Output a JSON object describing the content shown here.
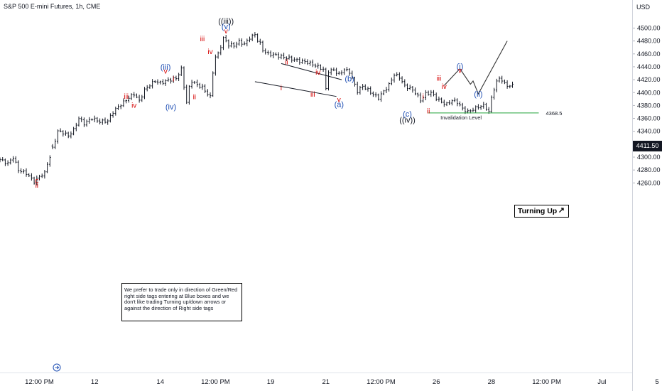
{
  "header": {
    "title": "S&P 500 E-mini Futures, 1h, CME",
    "currency": "USD"
  },
  "price_tag": "4411.50",
  "colors": {
    "candle": "#131722",
    "red_label": "#d50000",
    "blue_label": "#1f4fb4",
    "black_label": "#131722",
    "invalidation_line": "#22a53a",
    "projection": "#333333"
  },
  "note_text": "We prefer to trade only in direction of Green/Red right side tags entering at Blue boxes and we don't like trading Turning up/down arrows or against the direction of Right side tags",
  "turning_label": "Turning Up",
  "turning_arrow": "↗",
  "invalidation": {
    "label": "Invalidation Level",
    "value_label": "4368.5",
    "value": 4368.5
  },
  "chart_data": {
    "type": "candlestick",
    "instrument": "S&P 500 E-mini Futures",
    "interval": "1h",
    "exchange": "CME",
    "y_axis": {
      "ticks": [
        4500,
        4480,
        4460,
        4440,
        4420,
        4400,
        4380,
        4360,
        4340,
        4320,
        4300,
        4280,
        4260
      ],
      "tick_labels": [
        "4500.00",
        "4480.00",
        "4460.00",
        "4440.00",
        "4420.00",
        "4400.00",
        "4380.00",
        "4360.00",
        "4340.00",
        "4320.00",
        "4300.00",
        "4280.00",
        "4260.00"
      ],
      "range": [
        4242,
        4520
      ]
    },
    "x_axis": {
      "tick_labels": [
        "12:00 PM",
        "12",
        "14",
        "12:00 PM",
        "19",
        "21",
        "12:00 PM",
        "26",
        "28",
        "12:00 PM",
        "Jul",
        "5"
      ],
      "tick_index": [
        15,
        36,
        61,
        82,
        103,
        124,
        145,
        166,
        187,
        208,
        229,
        250
      ]
    },
    "last_price": 4411.5,
    "price_anchors": [
      [
        0,
        4296
      ],
      [
        3,
        4290
      ],
      [
        5,
        4300
      ],
      [
        7,
        4280
      ],
      [
        10,
        4275
      ],
      [
        13,
        4262
      ],
      [
        15,
        4270
      ],
      [
        17,
        4275
      ],
      [
        18,
        4290
      ],
      [
        19,
        4300
      ],
      [
        22,
        4340
      ],
      [
        24,
        4338
      ],
      [
        26,
        4333
      ],
      [
        28,
        4342
      ],
      [
        30,
        4360
      ],
      [
        32,
        4352
      ],
      [
        35,
        4360
      ],
      [
        38,
        4355
      ],
      [
        41,
        4356
      ],
      [
        43,
        4370
      ],
      [
        45,
        4378
      ],
      [
        47,
        4385
      ],
      [
        49,
        4392
      ],
      [
        51,
        4398
      ],
      [
        53,
        4387
      ],
      [
        55,
        4404
      ],
      [
        57,
        4412
      ],
      [
        59,
        4418
      ],
      [
        61,
        4415
      ],
      [
        64,
        4419
      ],
      [
        67,
        4422
      ],
      [
        69,
        4436
      ],
      [
        70,
        4410
      ],
      [
        71,
        4385
      ],
      [
        72,
        4408
      ],
      [
        73,
        4418
      ],
      [
        75,
        4412
      ],
      [
        77,
        4408
      ],
      [
        79,
        4398
      ],
      [
        80,
        4393
      ],
      [
        81,
        4432
      ],
      [
        82,
        4455
      ],
      [
        83,
        4460
      ],
      [
        85,
        4484
      ],
      [
        86,
        4480
      ],
      [
        87,
        4474
      ],
      [
        89,
        4473
      ],
      [
        91,
        4479
      ],
      [
        93,
        4475
      ],
      [
        95,
        4485
      ],
      [
        97,
        4490
      ],
      [
        98,
        4481
      ],
      [
        99,
        4476
      ],
      [
        100,
        4466
      ],
      [
        102,
        4460
      ],
      [
        105,
        4458
      ],
      [
        108,
        4455
      ],
      [
        111,
        4452
      ],
      [
        114,
        4449
      ],
      [
        117,
        4447
      ],
      [
        120,
        4442
      ],
      [
        123,
        4436
      ],
      [
        124,
        4405
      ],
      [
        125,
        4433
      ],
      [
        127,
        4435
      ],
      [
        129,
        4428
      ],
      [
        131,
        4436
      ],
      [
        133,
        4432
      ],
      [
        135,
        4412
      ],
      [
        136,
        4402
      ],
      [
        138,
        4410
      ],
      [
        140,
        4404
      ],
      [
        142,
        4397
      ],
      [
        144,
        4392
      ],
      [
        146,
        4402
      ],
      [
        148,
        4412
      ],
      [
        150,
        4428
      ],
      [
        152,
        4424
      ],
      [
        154,
        4410
      ],
      [
        156,
        4407
      ],
      [
        158,
        4400
      ],
      [
        160,
        4388
      ],
      [
        162,
        4398
      ],
      [
        164,
        4400
      ],
      [
        166,
        4392
      ],
      [
        168,
        4385
      ],
      [
        170,
        4382
      ],
      [
        172,
        4388
      ],
      [
        174,
        4385
      ],
      [
        176,
        4375
      ],
      [
        178,
        4370
      ],
      [
        180,
        4374
      ],
      [
        182,
        4378
      ],
      [
        184,
        4380
      ],
      [
        185,
        4376
      ],
      [
        186,
        4370
      ],
      [
        187,
        4392
      ],
      [
        188,
        4406
      ],
      [
        189,
        4416
      ],
      [
        190,
        4423
      ],
      [
        191,
        4419
      ],
      [
        192,
        4413
      ],
      [
        194,
        4410
      ],
      [
        195,
        4411.5
      ]
    ],
    "gaps_after_index": [
      19
    ],
    "wave_labels": [
      {
        "text": "c",
        "i": 14,
        "price": 4264,
        "color": "red",
        "pos": "below"
      },
      {
        "text": "ii",
        "i": 14,
        "price": 4257,
        "color": "red",
        "pos": "below"
      },
      {
        "text": "iii",
        "i": 48,
        "price": 4395,
        "color": "red",
        "pos": "above"
      },
      {
        "text": "iv",
        "i": 51,
        "price": 4381,
        "color": "red",
        "pos": "below"
      },
      {
        "text": "(iii)",
        "i": 63,
        "price": 4440,
        "color": "blue",
        "pos": "above"
      },
      {
        "text": "v",
        "i": 63,
        "price": 4434,
        "color": "red",
        "pos": "above"
      },
      {
        "text": "i",
        "i": 66,
        "price": 4422,
        "color": "red",
        "pos": "above"
      },
      {
        "text": "(iv)",
        "i": 65,
        "price": 4378,
        "color": "blue",
        "pos": "below"
      },
      {
        "text": "ii",
        "i": 74,
        "price": 4394,
        "color": "red",
        "pos": "below"
      },
      {
        "text": "iii",
        "i": 77,
        "price": 4484,
        "color": "red",
        "pos": "above"
      },
      {
        "text": "iv",
        "i": 80,
        "price": 4464,
        "color": "red",
        "pos": "below"
      },
      {
        "text": "((iii))",
        "i": 86,
        "price": 4511,
        "color": "black",
        "pos": "above"
      },
      {
        "text": "(v)",
        "i": 86,
        "price": 4503,
        "color": "blue",
        "pos": "above"
      },
      {
        "text": "v",
        "i": 86,
        "price": 4496,
        "color": "red",
        "pos": "above"
      },
      {
        "text": "ii",
        "i": 109,
        "price": 4448,
        "color": "red",
        "pos": "above"
      },
      {
        "text": "i",
        "i": 107,
        "price": 4408,
        "color": "red",
        "pos": "below"
      },
      {
        "text": "iii",
        "i": 119,
        "price": 4398,
        "color": "red",
        "pos": "below"
      },
      {
        "text": "iv",
        "i": 121,
        "price": 4432,
        "color": "red",
        "pos": "above"
      },
      {
        "text": "v",
        "i": 129,
        "price": 4390,
        "color": "red",
        "pos": "below"
      },
      {
        "text": "(a)",
        "i": 129,
        "price": 4382,
        "color": "blue",
        "pos": "below"
      },
      {
        "text": "(b)",
        "i": 133,
        "price": 4422,
        "color": "blue",
        "pos": "above"
      },
      {
        "text": "(c)",
        "i": 155,
        "price": 4367,
        "color": "blue",
        "pos": "below"
      },
      {
        "text": "((iv))",
        "i": 155,
        "price": 4358,
        "color": "black",
        "pos": "below"
      },
      {
        "text": "i",
        "i": 161,
        "price": 4395,
        "color": "red",
        "pos": "above"
      },
      {
        "text": "ii",
        "i": 163,
        "price": 4372,
        "color": "red",
        "pos": "below"
      },
      {
        "text": "iii",
        "i": 167,
        "price": 4423,
        "color": "red",
        "pos": "above"
      },
      {
        "text": "iv",
        "i": 169,
        "price": 4410,
        "color": "red",
        "pos": "below"
      },
      {
        "text": "(i)",
        "i": 175,
        "price": 4441,
        "color": "blue",
        "pos": "above"
      },
      {
        "text": "v",
        "i": 175,
        "price": 4435,
        "color": "red",
        "pos": "above"
      },
      {
        "text": "(ii)",
        "i": 182,
        "price": 4398,
        "color": "blue",
        "pos": "below"
      }
    ],
    "channel_lines": [
      {
        "from": [
          107,
          4445
        ],
        "to": [
          130,
          4420
        ]
      },
      {
        "from": [
          97,
          4417
        ],
        "to": [
          128,
          4394
        ]
      }
    ],
    "projection_path": [
      [
        169,
        4411
      ],
      [
        175,
        4437
      ],
      [
        179,
        4413
      ],
      [
        180,
        4418
      ],
      [
        182,
        4398
      ],
      [
        193,
        4480
      ]
    ],
    "invalidation_line": {
      "from_i": 163,
      "to_i": 205,
      "price": 4368.5
    },
    "grid": false
  }
}
